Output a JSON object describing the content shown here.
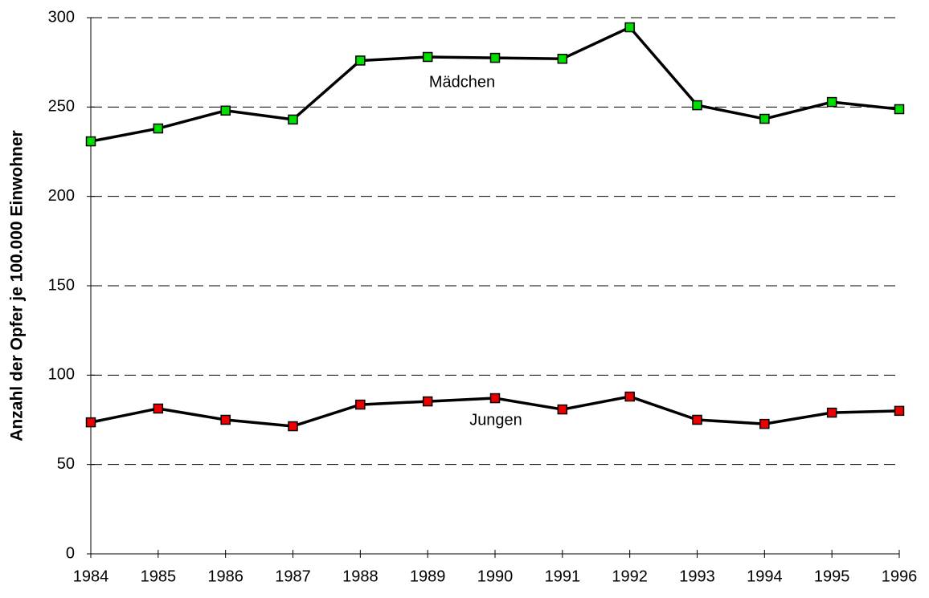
{
  "chart_data": {
    "type": "line",
    "y_label": "Anzahl der Opfer je 100.000 Einwohner",
    "x": [
      1984,
      1985,
      1986,
      1987,
      1988,
      1989,
      1990,
      1991,
      1992,
      1993,
      1994,
      1995,
      1996
    ],
    "xlim": [
      1984,
      1996
    ],
    "xticks": [
      1984,
      1985,
      1986,
      1987,
      1988,
      1989,
      1990,
      1991,
      1992,
      1993,
      1994,
      1995,
      1996
    ],
    "ylim": [
      0,
      300
    ],
    "yticks": [
      0,
      50,
      100,
      150,
      200,
      250,
      300
    ],
    "grid": true,
    "series": [
      {
        "name": "Mädchen",
        "color": "#00dd00",
        "line_color": "#000000",
        "values": [
          230.8,
          238,
          248,
          243,
          276,
          278,
          277.5,
          277,
          294.6,
          251,
          243.4,
          252.8,
          248.8
        ]
      },
      {
        "name": "Jungen",
        "color": "#ee0000",
        "line_color": "#000000",
        "values": [
          73.6,
          81.3,
          75,
          71.4,
          83.5,
          85.3,
          87.1,
          80.8,
          88,
          75,
          72.7,
          79,
          80
        ]
      }
    ]
  }
}
